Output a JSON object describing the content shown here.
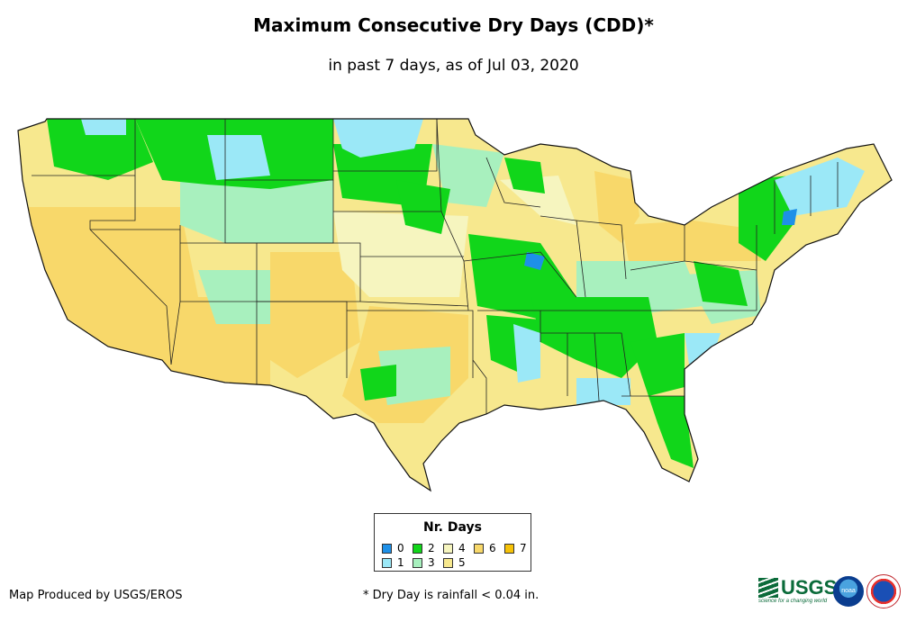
{
  "title": "Maximum Consecutive Dry Days (CDD)*",
  "subtitle": "in past 7 days, as of Jul 03, 2020",
  "legend": {
    "title": "Nr. Days",
    "items": [
      {
        "label": "0",
        "color": "#1e90e8"
      },
      {
        "label": "1",
        "color": "#9be8f7"
      },
      {
        "label": "2",
        "color": "#11d61a"
      },
      {
        "label": "3",
        "color": "#a8f0be"
      },
      {
        "label": "4",
        "color": "#f6f5bf"
      },
      {
        "label": "5",
        "color": "#f7e88e"
      },
      {
        "label": "6",
        "color": "#f8d86a"
      },
      {
        "label": "7",
        "color": "#f6c208"
      }
    ]
  },
  "credit": "Map Produced by USGS/EROS",
  "footnote": "* Dry Day is rainfall < 0.04 in.",
  "logos": {
    "usgs": "USGS",
    "usgs_tagline": "science for a changing world",
    "noaa": "noaa"
  }
}
